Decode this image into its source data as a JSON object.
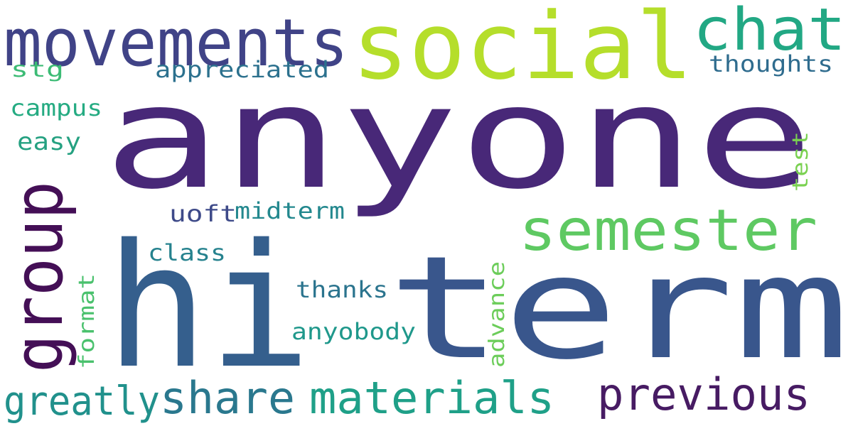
{
  "word_cloud": {
    "words": [
      {
        "id": "anyone",
        "text": "anyone",
        "color": "#482878"
      },
      {
        "id": "hi",
        "text": "hi",
        "color": "#355f8d"
      },
      {
        "id": "term",
        "text": "term",
        "color": "#39568c"
      },
      {
        "id": "social",
        "text": "social",
        "color": "#b5de2b"
      },
      {
        "id": "movements",
        "text": "movements",
        "color": "#404387"
      },
      {
        "id": "chat",
        "text": "chat",
        "color": "#22a884"
      },
      {
        "id": "group",
        "text": "group",
        "color": "#440f56"
      },
      {
        "id": "semester",
        "text": "semester",
        "color": "#5ec962"
      },
      {
        "id": "previous",
        "text": "previous",
        "color": "#471b63"
      },
      {
        "id": "share",
        "text": "share",
        "color": "#2a788e"
      },
      {
        "id": "materials",
        "text": "materials",
        "color": "#1fa088"
      },
      {
        "id": "greatly",
        "text": "greatly",
        "color": "#21918c"
      },
      {
        "id": "appreciated",
        "text": "appreciated",
        "color": "#2c718e"
      },
      {
        "id": "thoughts",
        "text": "thoughts",
        "color": "#2f6c8e"
      },
      {
        "id": "stg",
        "text": "stg",
        "color": "#3cbb75"
      },
      {
        "id": "campus",
        "text": "campus",
        "color": "#25ab82"
      },
      {
        "id": "easy",
        "text": "easy",
        "color": "#25a181"
      },
      {
        "id": "test",
        "text": "test",
        "color": "#7ad151"
      },
      {
        "id": "uoft",
        "text": "uoft",
        "color": "#3e4a89"
      },
      {
        "id": "midterm",
        "text": "midterm",
        "color": "#23888e"
      },
      {
        "id": "class",
        "text": "class",
        "color": "#26828e"
      },
      {
        "id": "thanks",
        "text": "thanks",
        "color": "#2b748e"
      },
      {
        "id": "anyobody",
        "text": "anyobody",
        "color": "#1f988b"
      },
      {
        "id": "format",
        "text": "format",
        "color": "#4ac16d"
      },
      {
        "id": "advance",
        "text": "advance",
        "color": "#6ccd5a"
      }
    ]
  }
}
